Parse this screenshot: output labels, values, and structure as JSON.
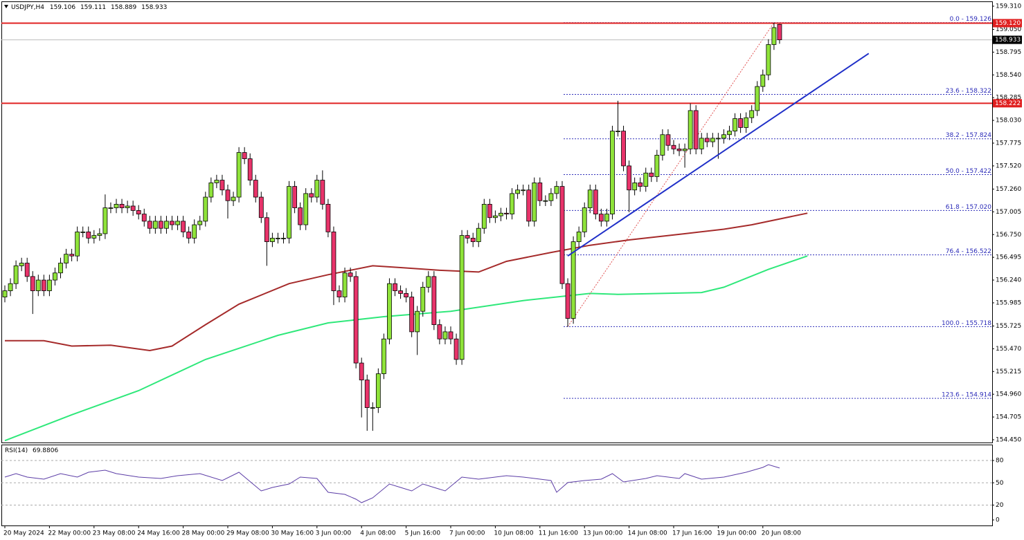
{
  "chart_data": {
    "type": "candlestick",
    "symbol": "USDJPY,H4",
    "ylim": [
      154.419,
      159.364
    ],
    "yticks": [
      {
        "value": 159.31,
        "label": "159.310"
      },
      {
        "value": 159.05,
        "label": "159.050"
      },
      158.795,
      {
        "value": 158.54,
        "label": "158.540"
      },
      158.285,
      {
        "value": 158.03,
        "label": "158.030"
      },
      157.775,
      {
        "value": 157.52,
        "label": "157.520"
      },
      {
        "value": 157.26,
        "label": "157.260"
      },
      157.005,
      {
        "value": 156.75,
        "label": "156.750"
      },
      156.495,
      {
        "value": 156.24,
        "label": "156.240"
      },
      155.985,
      155.725,
      {
        "value": 155.47,
        "label": "155.470"
      },
      155.215,
      {
        "value": 154.96,
        "label": "154.960"
      },
      154.705,
      {
        "value": 154.45,
        "label": "154.450"
      }
    ],
    "xticks": [
      {
        "value": 0,
        "label": "20 May 2024"
      },
      {
        "value": 8,
        "label": "22 May 00:00"
      },
      {
        "value": 16,
        "label": "23 May 08:00"
      },
      {
        "value": 24,
        "label": "24 May 16:00"
      },
      {
        "value": 32,
        "label": "28 May 00:00"
      },
      {
        "value": 40,
        "label": "29 May 08:00"
      },
      {
        "value": 48,
        "label": "30 May 16:00"
      },
      {
        "value": 56,
        "label": "3 Jun 00:00"
      },
      {
        "value": 64,
        "label": "4 Jun 08:00"
      },
      {
        "value": 72,
        "label": "5 Jun 16:00"
      },
      {
        "value": 80,
        "label": "7 Jun 00:00"
      },
      {
        "value": 88,
        "label": "10 Jun 08:00"
      },
      {
        "value": 96,
        "label": "11 Jun 16:00"
      },
      {
        "value": 104,
        "label": "13 Jun 00:00"
      },
      {
        "value": 112,
        "label": "14 Jun 08:00"
      },
      {
        "value": 120,
        "label": "17 Jun 16:00"
      },
      {
        "value": 128,
        "label": "19 Jun 00:00"
      },
      {
        "value": 136,
        "label": "20 Jun 08:00"
      }
    ],
    "bull_color": "#8fe33a",
    "bear_color": "#e8336a",
    "open": [
      156.05,
      156.12,
      156.2,
      156.4,
      156.43,
      156.28,
      156.12,
      156.24,
      156.12,
      156.24,
      156.32,
      156.43,
      156.53,
      156.51,
      156.78,
      156.78,
      156.71,
      156.74,
      156.76,
      157.05,
      157.05,
      157.09,
      157.05,
      157.07,
      157.02,
      156.98,
      156.9,
      156.82,
      156.9,
      156.82,
      156.9,
      156.86,
      156.9,
      156.78,
      156.71,
      156.86,
      156.9,
      157.17,
      157.33,
      157.36,
      157.25,
      157.13,
      157.17,
      157.67,
      157.6,
      157.36,
      157.17,
      156.94,
      156.67,
      156.71,
      156.71,
      156.71,
      157.29,
      157.05,
      156.86,
      157.21,
      157.17,
      157.36,
      157.09,
      156.78,
      156.12,
      156.05,
      156.32,
      156.28,
      155.31,
      155.12,
      154.81,
      154.81,
      155.19,
      155.58,
      156.2,
      156.12,
      156.09,
      156.05,
      155.66,
      155.89,
      156.16,
      156.28,
      155.74,
      155.58,
      155.66,
      155.58,
      155.35,
      156.74,
      156.71,
      156.67,
      156.82,
      157.09,
      156.94,
      156.96,
      156.99,
      156.98,
      157.21,
      157.25,
      157.25,
      156.9,
      157.33,
      157.13,
      157.13,
      157.21,
      157.29,
      156.2,
      155.81,
      156.67,
      156.78,
      157.05,
      157.25,
      156.98,
      156.9,
      156.98,
      157.91,
      157.91,
      157.52,
      157.25,
      157.33,
      157.29,
      157.44,
      157.4,
      157.64,
      157.87,
      157.75,
      157.71,
      157.69,
      157.71,
      158.14,
      157.71,
      157.83,
      157.79,
      157.83,
      157.83,
      157.87,
      157.91,
      158.05,
      157.95,
      158.06,
      158.14,
      158.41,
      158.54,
      158.88,
      159.106
    ],
    "high": [
      156.18,
      156.26,
      156.46,
      156.49,
      156.49,
      156.34,
      156.3,
      156.3,
      156.3,
      156.38,
      156.49,
      156.59,
      156.59,
      156.84,
      156.84,
      156.84,
      156.8,
      156.82,
      157.2,
      157.11,
      157.15,
      157.15,
      157.13,
      157.13,
      157.08,
      157.04,
      156.96,
      156.96,
      156.96,
      156.96,
      156.96,
      156.96,
      156.96,
      156.84,
      156.92,
      156.96,
      157.23,
      157.39,
      157.42,
      157.42,
      157.31,
      157.23,
      157.73,
      157.73,
      157.66,
      157.42,
      157.23,
      157.0,
      156.77,
      156.77,
      156.77,
      157.35,
      157.35,
      157.11,
      157.27,
      157.27,
      157.42,
      157.47,
      157.15,
      156.84,
      156.18,
      156.38,
      156.38,
      156.34,
      155.37,
      155.18,
      154.87,
      155.25,
      155.64,
      156.26,
      156.26,
      156.18,
      156.15,
      156.11,
      155.95,
      156.22,
      156.34,
      156.34,
      155.8,
      155.72,
      155.72,
      155.64,
      156.8,
      156.8,
      156.77,
      156.88,
      157.15,
      157.15,
      157.02,
      157.05,
      157.05,
      157.27,
      157.31,
      157.31,
      157.31,
      157.39,
      157.39,
      157.19,
      157.27,
      157.35,
      157.35,
      156.26,
      156.73,
      156.84,
      157.11,
      157.31,
      157.31,
      157.04,
      157.04,
      157.97,
      158.25,
      157.97,
      157.58,
      157.39,
      157.39,
      157.5,
      157.5,
      157.7,
      157.93,
      157.93,
      157.81,
      157.77,
      157.77,
      158.22,
      158.2,
      157.89,
      157.89,
      157.89,
      157.89,
      157.93,
      157.97,
      158.11,
      158.11,
      158.12,
      158.2,
      158.47,
      158.6,
      158.94,
      159.126,
      159.111
    ],
    "low": [
      155.99,
      156.06,
      156.14,
      156.34,
      156.22,
      155.86,
      156.06,
      156.06,
      156.06,
      156.18,
      156.26,
      156.37,
      156.45,
      156.45,
      156.72,
      156.65,
      156.65,
      156.68,
      156.7,
      156.99,
      156.99,
      156.99,
      156.99,
      156.96,
      156.92,
      156.84,
      156.76,
      156.76,
      156.76,
      156.76,
      156.8,
      156.8,
      156.72,
      156.65,
      156.65,
      156.8,
      156.84,
      157.11,
      157.27,
      157.19,
      156.93,
      157.07,
      157.11,
      157.54,
      157.3,
      157.11,
      156.88,
      156.4,
      156.61,
      156.65,
      156.65,
      156.65,
      156.99,
      156.8,
      156.8,
      157.11,
      157.11,
      157.03,
      156.72,
      155.96,
      155.99,
      155.99,
      156.22,
      155.25,
      154.7,
      154.55,
      154.55,
      154.75,
      155.13,
      155.52,
      156.06,
      156.03,
      155.99,
      155.6,
      155.4,
      155.83,
      156.1,
      155.68,
      155.52,
      155.52,
      155.52,
      155.29,
      155.29,
      156.65,
      156.61,
      156.61,
      156.76,
      156.88,
      156.88,
      156.9,
      156.92,
      156.92,
      157.15,
      157.19,
      156.84,
      156.84,
      157.07,
      157.07,
      157.07,
      157.15,
      156.14,
      155.718,
      155.75,
      156.61,
      156.72,
      156.99,
      156.92,
      156.84,
      156.84,
      156.92,
      157.85,
      157.46,
      157.0,
      157.19,
      157.23,
      157.23,
      157.34,
      157.34,
      157.58,
      157.69,
      157.65,
      157.63,
      157.5,
      157.65,
      157.65,
      157.65,
      157.73,
      157.73,
      157.6,
      157.77,
      157.81,
      157.85,
      157.89,
      157.89,
      158.0,
      158.08,
      158.35,
      158.48,
      158.82,
      158.889
    ],
    "close": [
      156.12,
      156.2,
      156.4,
      156.43,
      156.28,
      156.12,
      156.24,
      156.12,
      156.24,
      156.32,
      156.43,
      156.53,
      156.51,
      156.78,
      156.78,
      156.71,
      156.74,
      156.76,
      157.05,
      157.05,
      157.09,
      157.05,
      157.07,
      157.02,
      156.98,
      156.9,
      156.82,
      156.9,
      156.82,
      156.9,
      156.86,
      156.9,
      156.78,
      156.71,
      156.86,
      156.9,
      157.17,
      157.33,
      157.36,
      157.25,
      157.13,
      157.17,
      157.67,
      157.6,
      157.36,
      157.17,
      156.94,
      156.67,
      156.71,
      156.71,
      156.71,
      157.29,
      157.05,
      156.86,
      157.21,
      157.17,
      157.36,
      157.09,
      156.78,
      156.12,
      156.05,
      156.32,
      156.28,
      155.31,
      155.12,
      154.81,
      154.81,
      155.19,
      155.58,
      156.2,
      156.12,
      156.09,
      156.05,
      155.66,
      155.89,
      156.16,
      156.28,
      155.74,
      155.58,
      155.66,
      155.58,
      155.35,
      156.74,
      156.71,
      156.67,
      156.82,
      157.09,
      156.94,
      156.96,
      156.99,
      156.98,
      157.21,
      157.25,
      157.25,
      156.9,
      157.33,
      157.13,
      157.13,
      157.21,
      157.29,
      156.2,
      155.81,
      156.67,
      156.78,
      157.05,
      157.25,
      156.98,
      156.9,
      156.98,
      157.91,
      157.91,
      157.52,
      157.25,
      157.33,
      157.29,
      157.44,
      157.4,
      157.64,
      157.87,
      157.75,
      157.71,
      157.69,
      157.71,
      158.14,
      157.71,
      157.83,
      157.79,
      157.83,
      157.83,
      157.87,
      157.91,
      158.05,
      157.95,
      158.06,
      158.14,
      158.41,
      158.54,
      158.88,
      159.07,
      158.933
    ],
    "series": [
      {
        "color": "#a52a2a",
        "x": [
          0,
          7,
          12,
          19,
          26,
          30,
          36,
          42,
          51,
          58,
          66,
          71,
          78,
          85,
          90,
          98,
          105,
          112,
          122,
          129,
          134,
          144
        ],
        "values": [
          155.56,
          155.56,
          155.5,
          155.51,
          155.45,
          155.5,
          155.74,
          155.97,
          156.2,
          156.3,
          156.4,
          156.38,
          156.35,
          156.33,
          156.45,
          156.55,
          156.63,
          156.69,
          156.76,
          156.81,
          156.86,
          156.99
        ]
      },
      {
        "color": "#2ee87a",
        "x": [
          0,
          12,
          24,
          36,
          49,
          58,
          68,
          80,
          93,
          105,
          110,
          125,
          129,
          137,
          144
        ],
        "values": [
          154.44,
          154.73,
          155.0,
          155.35,
          155.62,
          155.76,
          155.83,
          155.89,
          156.01,
          156.09,
          156.08,
          156.1,
          156.16,
          156.36,
          156.51
        ]
      }
    ],
    "trendline": {
      "color": "#1f2fc8",
      "x": [
        101,
        155
      ],
      "values": [
        156.51,
        158.78
      ]
    },
    "hlines": [
      {
        "value": 159.12,
        "label": "159.120"
      },
      {
        "value": 158.222,
        "label": "158.222"
      }
    ],
    "hline_color": "#e02020",
    "fib_levels": [
      {
        "value": 159.126,
        "label": "0.0 - 159.126"
      },
      {
        "value": 158.322,
        "label": "23.6 - 158.322"
      },
      {
        "value": 157.824,
        "label": "38.2 - 157.824"
      },
      {
        "value": 157.422,
        "label": "50.0 - 157.422"
      },
      {
        "value": 157.02,
        "label": "61.8 - 157.020"
      },
      {
        "value": 156.522,
        "label": "76.4 - 156.522"
      },
      {
        "value": 155.718,
        "label": "100.0 - 155.718"
      },
      {
        "value": 154.914,
        "label": "123.6 - 154.914"
      }
    ],
    "rsi": {
      "label": "RSI(14)",
      "color": "#5b3ca6",
      "ylim": [
        0,
        100
      ],
      "yticks": [
        80,
        50,
        20,
        0
      ],
      "x": [
        0,
        2,
        4,
        7,
        10,
        13,
        15,
        18,
        20,
        24,
        28,
        31,
        35,
        39,
        42,
        46,
        48,
        51,
        53,
        56,
        58,
        61,
        63,
        64,
        66,
        69,
        71,
        73,
        75,
        79,
        82,
        85,
        90,
        93,
        98,
        99,
        101,
        104,
        107,
        109,
        111,
        115,
        117,
        121,
        122,
        125,
        129,
        133,
        136,
        137,
        139
      ],
      "values": [
        57.7,
        62.3,
        57.7,
        54.9,
        62.3,
        57.7,
        64.2,
        67.0,
        62.3,
        57.7,
        55.8,
        59.5,
        62.3,
        53.0,
        64.2,
        39.1,
        43.7,
        48.4,
        57.7,
        55.8,
        37.2,
        34.4,
        27.9,
        23.3,
        29.8,
        48.4,
        43.7,
        39.1,
        48.4,
        39.1,
        57.7,
        54.9,
        59.5,
        57.7,
        53.0,
        37.2,
        50.3,
        53.0,
        54.9,
        62.3,
        51.2,
        55.8,
        59.5,
        55.8,
        62.3,
        54.9,
        57.7,
        64.2,
        70.7,
        74.4,
        69.8806
      ]
    }
  }
}
